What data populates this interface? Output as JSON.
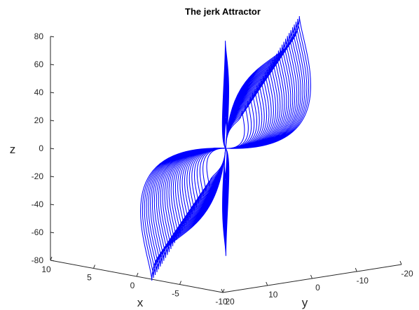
{
  "chart_data": {
    "type": "line",
    "title": "The jerk Attractor",
    "xlabel": "x",
    "ylabel": "y",
    "zlabel": "z",
    "grid": false,
    "x_ticks": [
      "10",
      "5",
      "0",
      "-5",
      "-10"
    ],
    "y_ticks": [
      "20",
      "10",
      "0",
      "-10",
      "-20"
    ],
    "z_ticks": [
      "80",
      "60",
      "40",
      "20",
      "0",
      "-20",
      "-40",
      "-60",
      "-80"
    ],
    "xlim": [
      -10,
      10
    ],
    "ylim": [
      -20,
      20
    ],
    "zlim": [
      -80,
      80
    ],
    "series_color": "#0000ff",
    "axis_color": "#262626"
  }
}
